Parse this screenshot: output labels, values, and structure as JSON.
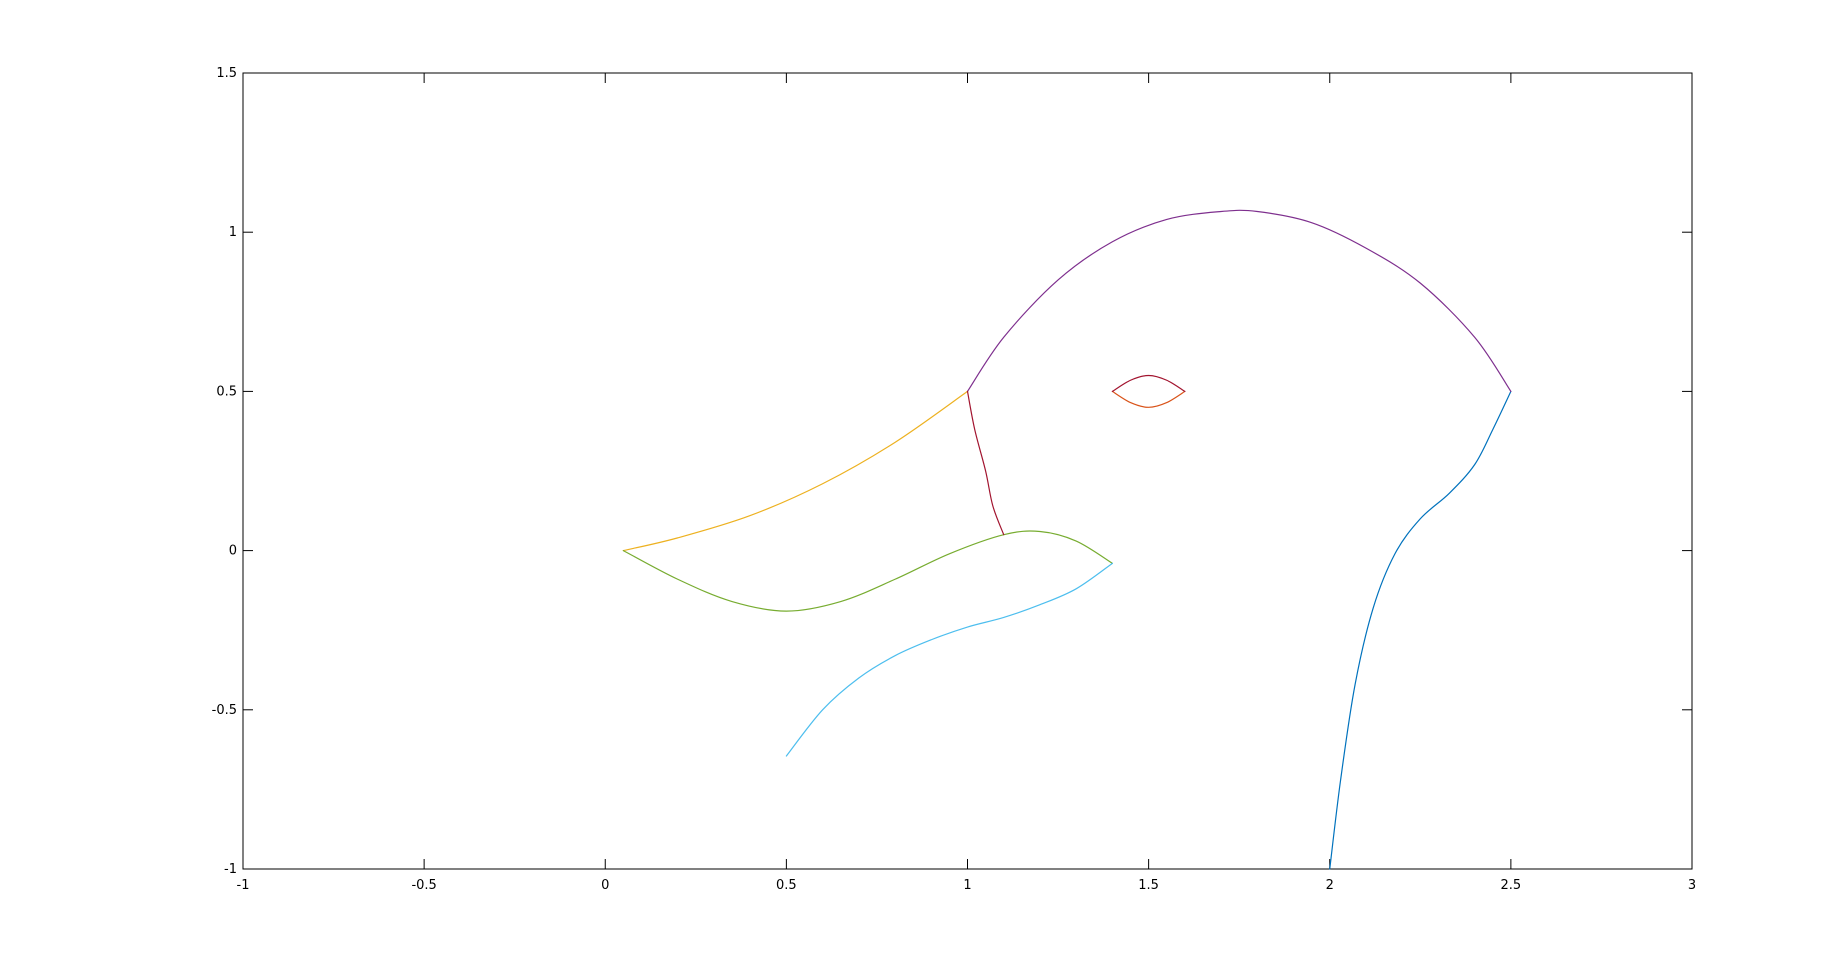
{
  "chart_data": {
    "type": "line",
    "title": "",
    "xlabel": "",
    "ylabel": "",
    "xlim": [
      -1,
      3
    ],
    "ylim": [
      -1,
      1.5
    ],
    "grid": false,
    "legend": "none",
    "x_ticks": [
      -1,
      -0.5,
      0,
      0.5,
      1,
      1.5,
      2,
      2.5,
      3
    ],
    "x_tick_labels": [
      "-1",
      "-0.5",
      "0",
      "0.5",
      "1",
      "1.5",
      "2",
      "2.5",
      "3"
    ],
    "y_ticks": [
      -1,
      -0.5,
      0,
      0.5,
      1,
      1.5
    ],
    "y_tick_labels": [
      "-1",
      "-0.5",
      "0",
      "0.5",
      "1",
      "1.5"
    ],
    "series": [
      {
        "color": "#0072BD",
        "x": [
          2.0,
          2.03,
          2.07,
          2.12,
          2.18,
          2.25,
          2.33,
          2.4,
          2.45,
          2.5
        ],
        "y": [
          -1.0,
          -0.72,
          -0.42,
          -0.18,
          -0.01,
          0.1,
          0.18,
          0.27,
          0.38,
          0.5
        ]
      },
      {
        "color": "#D95319",
        "x": [
          1.4,
          1.45,
          1.5,
          1.55,
          1.6
        ],
        "y": [
          0.5,
          0.465,
          0.45,
          0.465,
          0.5
        ]
      },
      {
        "color": "#EDB120",
        "x": [
          0.05,
          0.2,
          0.4,
          0.6,
          0.8,
          1.0
        ],
        "y": [
          0.0,
          0.04,
          0.11,
          0.21,
          0.34,
          0.5
        ]
      },
      {
        "color": "#7E2F8E",
        "x": [
          1.0,
          1.1,
          1.25,
          1.4,
          1.55,
          1.7,
          1.8,
          1.95,
          2.1,
          2.25,
          2.4,
          2.5
        ],
        "y": [
          0.5,
          0.67,
          0.85,
          0.97,
          1.04,
          1.065,
          1.065,
          1.03,
          0.95,
          0.84,
          0.67,
          0.5
        ]
      },
      {
        "color": "#77AC30",
        "x": [
          0.05,
          0.2,
          0.35,
          0.5,
          0.65,
          0.8,
          0.95,
          1.1,
          1.2,
          1.3,
          1.4
        ],
        "y": [
          0.0,
          -0.09,
          -0.16,
          -0.19,
          -0.16,
          -0.09,
          -0.01,
          0.05,
          0.06,
          0.03,
          -0.04
        ]
      },
      {
        "color": "#4DBEEE",
        "x": [
          0.5,
          0.6,
          0.7,
          0.8,
          0.9,
          1.0,
          1.1,
          1.2,
          1.3,
          1.4
        ],
        "y": [
          -0.645,
          -0.5,
          -0.4,
          -0.33,
          -0.28,
          -0.24,
          -0.21,
          -0.17,
          -0.12,
          -0.04
        ]
      },
      {
        "color": "#A2142F",
        "x": [
          1.0,
          1.02,
          1.05,
          1.07,
          1.1
        ],
        "y": [
          0.5,
          0.38,
          0.25,
          0.14,
          0.05
        ]
      },
      {
        "color": "#A2142F",
        "x": [
          1.4,
          1.45,
          1.5,
          1.55,
          1.6
        ],
        "y": [
          0.5,
          0.535,
          0.55,
          0.535,
          0.5
        ]
      }
    ]
  }
}
